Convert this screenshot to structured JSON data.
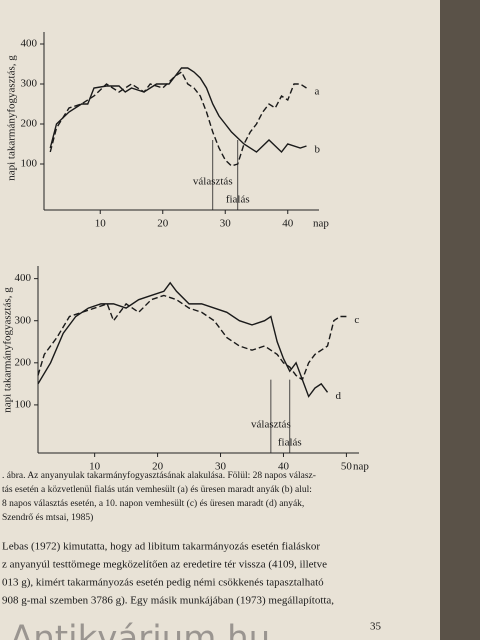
{
  "chart_data": [
    {
      "type": "line",
      "ylabel": "napi takarmányfogyasztás, g",
      "xlabel": "nap",
      "xlim": [
        1,
        45
      ],
      "xticks": [
        10,
        20,
        30,
        40
      ],
      "ylim": [
        0,
        430
      ],
      "yticks": [
        100,
        200,
        300,
        400
      ],
      "series": [
        {
          "name": "a",
          "color": "#1a1a1a",
          "dash": true,
          "x": [
            2,
            3,
            5,
            7,
            9,
            11,
            13,
            15,
            17,
            18,
            20,
            22,
            23,
            24,
            25,
            26,
            27,
            28,
            29,
            30,
            31,
            32,
            33,
            34,
            35,
            36,
            37,
            38,
            39,
            40,
            41,
            42,
            43
          ],
          "values": [
            130,
            190,
            240,
            250,
            270,
            300,
            280,
            300,
            280,
            300,
            290,
            320,
            330,
            300,
            290,
            270,
            230,
            180,
            140,
            110,
            95,
            100,
            150,
            180,
            200,
            230,
            250,
            240,
            270,
            260,
            300,
            300,
            290
          ]
        },
        {
          "name": "b",
          "color": "#1a1a1a",
          "dash": false,
          "x": [
            2,
            3,
            5,
            7,
            8,
            9,
            11,
            13,
            14,
            15,
            17,
            19,
            21,
            22,
            23,
            24,
            25,
            26,
            27,
            28,
            29,
            30,
            31,
            33,
            35,
            37,
            39,
            40,
            42,
            43
          ],
          "values": [
            140,
            200,
            230,
            250,
            250,
            290,
            295,
            295,
            280,
            290,
            280,
            300,
            300,
            320,
            340,
            340,
            330,
            315,
            290,
            250,
            220,
            200,
            180,
            150,
            130,
            160,
            130,
            150,
            140,
            145
          ]
        }
      ],
      "markers": [
        {
          "label": "választás",
          "x": 28
        },
        {
          "label": "fialás",
          "x": 32
        }
      ]
    },
    {
      "type": "line",
      "ylabel": "napi takarmányfogyasztás, g",
      "xlabel": "nap",
      "xlim": [
        1,
        52
      ],
      "xticks": [
        10,
        20,
        30,
        40,
        50
      ],
      "ylim": [
        0,
        430
      ],
      "yticks": [
        100,
        200,
        300,
        400
      ],
      "series": [
        {
          "name": "c",
          "color": "#1a1a1a",
          "dash": true,
          "x": [
            1,
            2,
            4,
            6,
            8,
            10,
            12,
            13,
            15,
            17,
            19,
            21,
            23,
            25,
            27,
            29,
            31,
            33,
            35,
            37,
            39,
            40,
            41,
            42,
            43,
            44,
            45,
            47,
            48,
            49,
            50
          ],
          "values": [
            170,
            220,
            260,
            310,
            320,
            330,
            340,
            300,
            340,
            320,
            350,
            360,
            350,
            330,
            320,
            300,
            260,
            240,
            230,
            240,
            220,
            200,
            190,
            170,
            160,
            200,
            220,
            240,
            300,
            310,
            310
          ]
        },
        {
          "name": "d",
          "color": "#1a1a1a",
          "dash": false,
          "x": [
            1,
            3,
            5,
            7,
            9,
            11,
            13,
            15,
            17,
            19,
            21,
            22,
            23,
            25,
            27,
            29,
            31,
            33,
            35,
            37,
            38,
            39,
            40,
            41,
            42,
            43,
            44,
            45,
            46,
            47
          ],
          "values": [
            150,
            200,
            270,
            310,
            330,
            340,
            340,
            330,
            350,
            360,
            370,
            390,
            370,
            340,
            340,
            330,
            320,
            300,
            290,
            300,
            310,
            250,
            210,
            180,
            200,
            160,
            120,
            140,
            150,
            130
          ]
        }
      ],
      "markers": [
        {
          "label": "választás",
          "x": 38
        },
        {
          "label": "fialás",
          "x": 41
        }
      ]
    }
  ],
  "caption": [
    ". ábra. Az anyanyulak takarmányfogyasztásának alakulása. Fölül: 28 napos válasz-",
    "tás esetén a közvetlenül fialás után vemhesült (a) és üresen maradt anyák (b) alul:",
    "8 napos választás esetén, a 10. napon vemhesült (c) és üresen maradt (d) anyák,",
    "Szendrő és mtsai, 1985)"
  ],
  "body": [
    "Lebas (1972) kimutatta, hogy ad libitum takarmányozás esetén fialáskor",
    "z anyanyúl testtömege megközelítően az eredetire tér vissza (4109, illetve",
    "013 g), kimért takarmányozás esetén pedig némi csökkenés tapasztalható",
    "908 g-mal szemben 3786 g). Egy másik munkájában (1973) megállapította,"
  ],
  "page_number": "35",
  "watermark": "Antikvárium.hu"
}
